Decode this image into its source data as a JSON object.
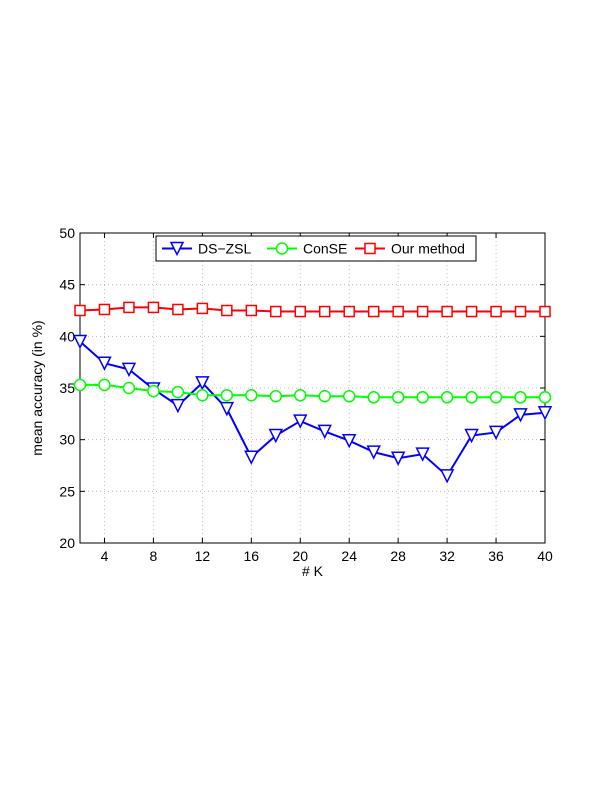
{
  "chart_data": {
    "type": "line",
    "xlabel": "# K",
    "ylabel": "mean accuracy (in %)",
    "xlim": [
      2,
      40
    ],
    "ylim": [
      20,
      50
    ],
    "x_ticks": [
      4,
      8,
      12,
      16,
      20,
      24,
      28,
      32,
      36,
      40
    ],
    "y_ticks": [
      20,
      25,
      30,
      35,
      40,
      45,
      50
    ],
    "grid": true,
    "legend_position": "top",
    "x": [
      2,
      4,
      6,
      8,
      10,
      12,
      14,
      16,
      18,
      20,
      22,
      24,
      26,
      28,
      30,
      32,
      34,
      36,
      38,
      40
    ],
    "series": [
      {
        "name": "DS−ZSL",
        "color": "#0000ff",
        "marker": "triangle-down",
        "values": [
          39.5,
          37.4,
          36.8,
          34.9,
          33.3,
          35.5,
          33.0,
          28.3,
          30.4,
          31.8,
          30.8,
          29.9,
          28.8,
          28.2,
          28.6,
          26.5,
          30.4,
          30.7,
          32.4,
          32.6
        ]
      },
      {
        "name": "ConSE",
        "color": "#00ff00",
        "marker": "circle",
        "values": [
          35.3,
          35.3,
          35.0,
          34.7,
          34.6,
          34.3,
          34.3,
          34.3,
          34.2,
          34.3,
          34.2,
          34.2,
          34.1,
          34.1,
          34.1,
          34.1,
          34.1,
          34.1,
          34.1,
          34.1
        ]
      },
      {
        "name": "Our method",
        "color": "#ff0000",
        "marker": "square",
        "values": [
          42.5,
          42.6,
          42.8,
          42.8,
          42.6,
          42.7,
          42.5,
          42.5,
          42.4,
          42.4,
          42.4,
          42.4,
          42.4,
          42.4,
          42.4,
          42.4,
          42.4,
          42.4,
          42.4,
          42.4
        ]
      }
    ]
  }
}
